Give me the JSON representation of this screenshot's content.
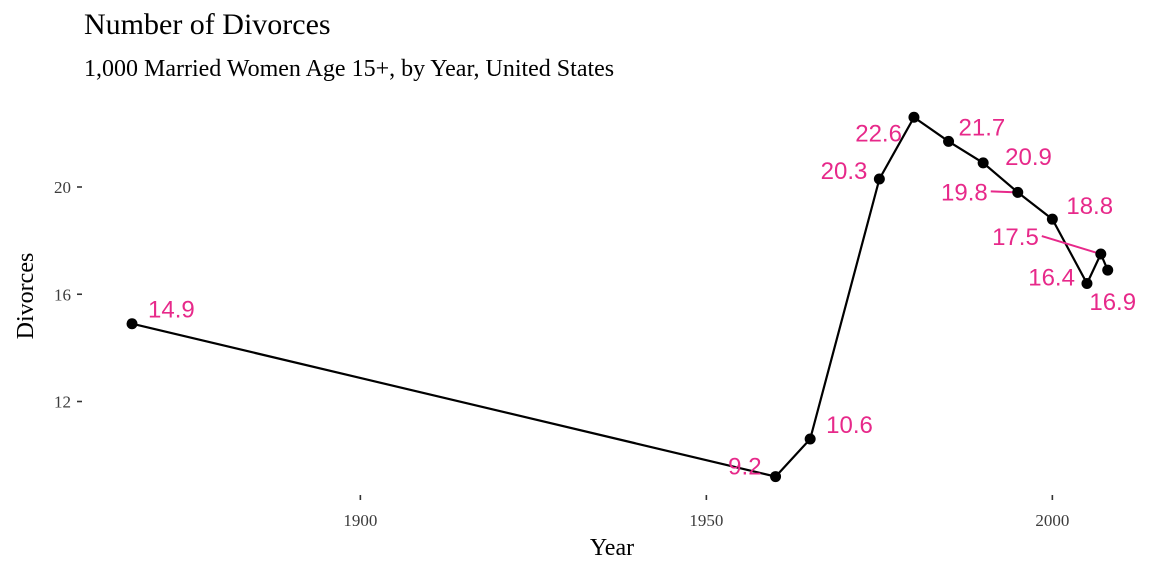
{
  "chart_data": {
    "type": "line",
    "title": "Number of Divorces",
    "subtitle": "1,000 Married Women Age 15+, by Year, United States",
    "xlabel": "Year",
    "ylabel": "Divorces",
    "xlim": [
      1863,
      1915
    ],
    "ylim": [
      8.8,
      23.5
    ],
    "x_ticks": [
      1900,
      1950,
      2000
    ],
    "y_ticks": [
      12,
      16,
      20
    ],
    "grid": false,
    "line_color": "#000000",
    "point_color": "#000000",
    "label_color": "#e7298a",
    "series": [
      {
        "points": [
          {
            "x": 1867,
            "y": 14.9,
            "label": "14.9"
          },
          {
            "x": 1960,
            "y": 9.2,
            "label": "9.2"
          },
          {
            "x": 1965,
            "y": 10.6,
            "label": "10.6"
          },
          {
            "x": 1975,
            "y": 20.3,
            "label": "20.3"
          },
          {
            "x": 1980,
            "y": 22.6,
            "label": "22.6"
          },
          {
            "x": 1985,
            "y": 21.7,
            "label": "21.7"
          },
          {
            "x": 1990,
            "y": 20.9,
            "label": "20.9"
          },
          {
            "x": 1995,
            "y": 19.8,
            "label": "19.8"
          },
          {
            "x": 2000,
            "y": 18.8,
            "label": "18.8"
          },
          {
            "x": 2005,
            "y": 16.4,
            "label": "16.4"
          },
          {
            "x": 2007,
            "y": 17.5,
            "label": "17.5"
          },
          {
            "x": 2008,
            "y": 16.9,
            "label": "16.9"
          }
        ]
      }
    ]
  }
}
